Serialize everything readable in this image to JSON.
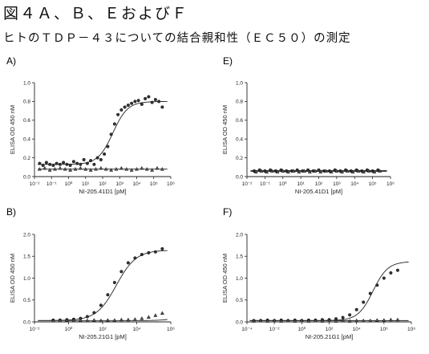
{
  "figure": {
    "title": "図４Ａ、Ｂ、ＥおよびＦ",
    "subtitle": "ヒトのＴＤＰ－４３についての結合親和性（ＥＣ５０）の測定"
  },
  "chart_data": [
    {
      "panel": "A)",
      "type": "scatter",
      "xscale": "log",
      "xlabel": "NI-205.41D1 [pM]",
      "ylabel": "ELISA OD 450 nM",
      "xlim": [
        -2,
        6
      ],
      "ylim": [
        0,
        1.0
      ],
      "xtick_exponents": [
        -2,
        -1,
        0,
        1,
        2,
        3,
        4,
        5,
        6
      ],
      "yticks": [
        "0.0",
        "0.2",
        "0.4",
        "0.6",
        "0.8",
        "1.0"
      ],
      "series": [
        {
          "x": [
            -1.7,
            -1.5,
            -1.3,
            -1.1,
            -0.9,
            -0.7,
            -0.5,
            -0.3,
            -0.1,
            0.1,
            0.3,
            0.5,
            0.7,
            0.9,
            1.1,
            1.3,
            1.5,
            1.7,
            1.9,
            2.1,
            2.3,
            2.5,
            2.7,
            2.9,
            3.1,
            3.3,
            3.5,
            3.7,
            3.9,
            4.1,
            4.3,
            4.5,
            4.7,
            4.9,
            5.1,
            5.3,
            5.5
          ],
          "y": [
            0.14,
            0.12,
            0.15,
            0.13,
            0.12,
            0.14,
            0.13,
            0.15,
            0.13,
            0.12,
            0.16,
            0.14,
            0.13,
            0.18,
            0.14,
            0.17,
            0.13,
            0.2,
            0.18,
            0.24,
            0.32,
            0.45,
            0.56,
            0.66,
            0.71,
            0.74,
            0.76,
            0.78,
            0.8,
            0.81,
            0.77,
            0.83,
            0.85,
            0.79,
            0.82,
            0.8,
            0.74
          ],
          "fit": {
            "bottom": 0.13,
            "top": 0.8,
            "logEC50": 2.6,
            "hill": 1.0
          }
        },
        {
          "x": [
            -1.7,
            -1.4,
            -1.1,
            -0.8,
            -0.5,
            -0.2,
            0.1,
            0.4,
            0.7,
            1.0,
            1.3,
            1.6,
            1.9,
            2.2,
            2.5,
            2.8,
            3.1,
            3.4,
            3.7,
            4.0,
            4.3,
            4.6,
            4.9,
            5.2,
            5.5
          ],
          "y": [
            0.08,
            0.09,
            0.07,
            0.08,
            0.09,
            0.08,
            0.07,
            0.08,
            0.09,
            0.08,
            0.07,
            0.08,
            0.09,
            0.08,
            0.07,
            0.08,
            0.09,
            0.08,
            0.07,
            0.08,
            0.09,
            0.08,
            0.07,
            0.09,
            0.08
          ],
          "fit": {
            "flat": 0.08
          }
        }
      ]
    },
    {
      "panel": "E)",
      "type": "scatter",
      "xscale": "log",
      "xlabel": "NI-205.41D1 [pM]",
      "ylabel": "ELISA OD 450 nM",
      "xlim": [
        -2,
        6
      ],
      "ylim": [
        0,
        1.0
      ],
      "xtick_exponents": [
        -2,
        -1,
        0,
        1,
        2,
        3,
        4,
        5,
        6
      ],
      "yticks": [
        "0.0",
        "0.2",
        "0.4",
        "0.6",
        "0.8",
        "1.0"
      ],
      "series": [
        {
          "x": [
            -1.6,
            -1.3,
            -1.0,
            -0.7,
            -0.4,
            -0.1,
            0.2,
            0.5,
            0.8,
            1.1,
            1.4,
            1.7,
            2.0,
            2.3,
            2.6,
            2.9,
            3.2,
            3.5,
            3.8,
            4.1,
            4.4,
            4.7,
            5.0,
            5.3
          ],
          "y": [
            0.06,
            0.07,
            0.06,
            0.07,
            0.06,
            0.07,
            0.06,
            0.06,
            0.07,
            0.06,
            0.07,
            0.06,
            0.07,
            0.06,
            0.06,
            0.07,
            0.06,
            0.07,
            0.06,
            0.07,
            0.06,
            0.07,
            0.06,
            0.07
          ],
          "fit": {
            "flat": 0.065
          }
        },
        {
          "x": [
            -1.5,
            -1.2,
            -0.9,
            -0.6,
            -0.3,
            0.0,
            0.3,
            0.6,
            0.9,
            1.2,
            1.5,
            1.8,
            2.1,
            2.4,
            2.7,
            3.0,
            3.3,
            3.6,
            3.9,
            4.2,
            4.5,
            4.8,
            5.1,
            5.4
          ],
          "y": [
            0.05,
            0.06,
            0.05,
            0.06,
            0.05,
            0.06,
            0.05,
            0.06,
            0.05,
            0.06,
            0.05,
            0.06,
            0.05,
            0.06,
            0.05,
            0.06,
            0.05,
            0.06,
            0.05,
            0.06,
            0.05,
            0.06,
            0.05,
            0.06
          ],
          "fit": {
            "flat": 0.055
          }
        }
      ]
    },
    {
      "panel": "B)",
      "type": "scatter",
      "xscale": "log",
      "xlabel": "NI-205.21G1 [pM]",
      "ylabel": "ELISA OD 450 nM",
      "xlim": [
        -2,
        6
      ],
      "ylim": [
        0,
        2.0
      ],
      "xtick_exponents": [
        -2,
        0,
        2,
        4,
        6
      ],
      "yticks": [
        "0.0",
        "0.5",
        "1.0",
        "1.5",
        "2.0"
      ],
      "series": [
        {
          "x": [
            -0.9,
            -0.5,
            -0.1,
            0.3,
            0.7,
            1.1,
            1.5,
            1.9,
            2.3,
            2.7,
            3.1,
            3.5,
            3.9,
            4.3,
            4.7,
            5.1,
            5.5
          ],
          "y": [
            0.04,
            0.04,
            0.05,
            0.06,
            0.08,
            0.12,
            0.21,
            0.38,
            0.62,
            0.9,
            1.15,
            1.35,
            1.46,
            1.54,
            1.58,
            1.6,
            1.67
          ],
          "fit": {
            "bottom": 0.03,
            "top": 1.64,
            "logEC50": 2.8,
            "hill": 0.75
          }
        },
        {
          "x": [
            -0.9,
            -0.5,
            -0.1,
            0.3,
            0.7,
            1.1,
            1.5,
            1.9,
            2.3,
            2.7,
            3.1,
            3.5,
            3.9,
            4.3,
            4.7,
            5.1,
            5.5
          ],
          "y": [
            0.03,
            0.03,
            0.04,
            0.03,
            0.04,
            0.03,
            0.04,
            0.03,
            0.04,
            0.04,
            0.05,
            0.05,
            0.06,
            0.08,
            0.11,
            0.15,
            0.2
          ],
          "fit": {
            "bottom": 0.03,
            "top": 2.5,
            "logEC50": 8.0,
            "hill": 0.9
          }
        }
      ]
    },
    {
      "panel": "F)",
      "type": "scatter",
      "xscale": "log",
      "xlabel": "NI-205.21G1 [pM]",
      "ylabel": "ELISA OD 450 nM",
      "xlim": [
        -4,
        8
      ],
      "ylim": [
        0,
        2.0
      ],
      "xtick_exponents": [
        -4,
        -2,
        0,
        2,
        4,
        6,
        8
      ],
      "yticks": [
        "0.0",
        "0.5",
        "1.0",
        "1.5",
        "2.0"
      ],
      "series": [
        {
          "x": [
            -3.5,
            -3.0,
            -2.5,
            -2.0,
            -1.5,
            -1.0,
            -0.5,
            0.0,
            0.5,
            1.0,
            1.5,
            2.0,
            2.5,
            3.0,
            3.5,
            4.0,
            4.5,
            5.0,
            5.5,
            6.0,
            6.5,
            7.0
          ],
          "y": [
            0.03,
            0.03,
            0.04,
            0.03,
            0.04,
            0.03,
            0.04,
            0.03,
            0.04,
            0.04,
            0.05,
            0.05,
            0.07,
            0.1,
            0.16,
            0.28,
            0.45,
            0.65,
            0.84,
            1.0,
            1.12,
            1.18
          ],
          "fit": {
            "bottom": 0.03,
            "top": 1.38,
            "logEC50": 5.2,
            "hill": 0.8
          }
        },
        {
          "x": [
            -3.5,
            -3.0,
            -2.5,
            -2.0,
            -1.5,
            -1.0,
            -0.5,
            0.0,
            0.5,
            1.0,
            1.5,
            2.0,
            2.5,
            3.0,
            3.5,
            4.0,
            4.5,
            5.0,
            5.5,
            6.0,
            6.5,
            7.0
          ],
          "y": [
            0.02,
            0.03,
            0.02,
            0.03,
            0.02,
            0.03,
            0.02,
            0.03,
            0.02,
            0.03,
            0.02,
            0.03,
            0.02,
            0.03,
            0.02,
            0.03,
            0.03,
            0.03,
            0.04,
            0.04,
            0.05,
            0.05
          ],
          "fit": {
            "flat": 0.03
          }
        }
      ]
    }
  ]
}
